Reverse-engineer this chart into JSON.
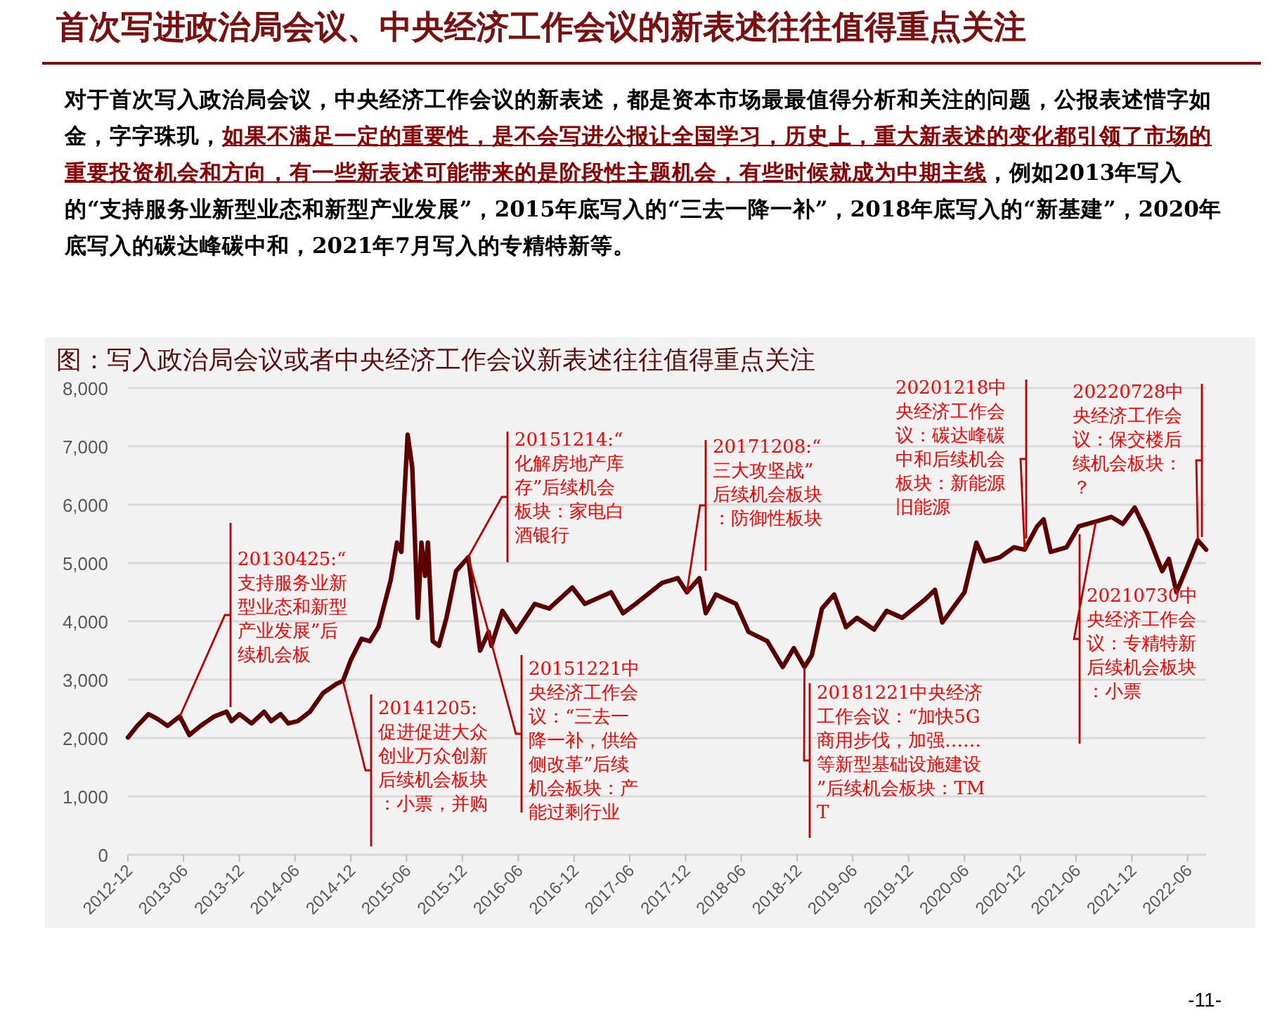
{
  "chart_data": {
    "type": "line",
    "title": "首次写进政治局会议、中央经济工作会议的新表述往往值得重点关注",
    "subtitle": "图：写入政治局会议或者中央经济工作会议新表述往往值得重点关注",
    "x": [
      "2012-12-01",
      "2013-01-01",
      "2013-02-06",
      "2013-03-07",
      "2013-04-10",
      "2013-05-20",
      "2013-06-20",
      "2013-07-27",
      "2013-09-10",
      "2013-10-20",
      "2013-11-05",
      "2013-12-01",
      "2014-01-10",
      "2014-02-20",
      "2014-03-15",
      "2014-04-15",
      "2014-05-10",
      "2014-06-10",
      "2014-07-20",
      "2014-09-01",
      "2014-10-15",
      "2014-11-05",
      "2014-12-01",
      "2015-01-05",
      "2015-02-01",
      "2015-03-01",
      "2015-04-10",
      "2015-05-01",
      "2015-05-15",
      "2015-06-05",
      "2015-06-20",
      "2015-07-08",
      "2015-07-20",
      "2015-08-01",
      "2015-08-10",
      "2015-08-26",
      "2015-09-15",
      "2015-10-10",
      "2015-11-10",
      "2015-12-20",
      "2016-01-28",
      "2016-02-25",
      "2016-03-05",
      "2016-04-10",
      "2016-05-25",
      "2016-07-25",
      "2016-09-10",
      "2016-11-25",
      "2017-01-05",
      "2017-04-01",
      "2017-05-10",
      "2017-06-20",
      "2017-09-15",
      "2017-11-05",
      "2017-12-05",
      "2018-01-15",
      "2018-02-05",
      "2018-03-10",
      "2018-05-15",
      "2018-06-25",
      "2018-08-25",
      "2018-10-15",
      "2018-11-20",
      "2018-12-25",
      "2019-01-18",
      "2019-02-20",
      "2019-04-01",
      "2019-05-10",
      "2019-06-15",
      "2019-08-10",
      "2019-09-20",
      "2019-11-10",
      "2020-01-25",
      "2020-02-25",
      "2020-03-20",
      "2020-06-01",
      "2020-07-10",
      "2020-08-05",
      "2020-09-25",
      "2020-11-10",
      "2020-12-15",
      "2021-01-25",
      "2021-02-15",
      "2021-03-10",
      "2021-05-01",
      "2021-06-10",
      "2021-08-05",
      "2021-09-25",
      "2021-11-01",
      "2021-12-10",
      "2022-01-20",
      "2022-03-10",
      "2022-04-01",
      "2022-04-26",
      "2022-05-25",
      "2022-07-05",
      "2022-08-01"
    ],
    "series": [
      {
        "color": "#5a0000",
        "values": [
          2010,
          2210,
          2410,
          2330,
          2210,
          2370,
          2050,
          2210,
          2370,
          2450,
          2290,
          2410,
          2250,
          2450,
          2290,
          2410,
          2250,
          2290,
          2450,
          2770,
          2930,
          2980,
          3340,
          3700,
          3660,
          3900,
          4700,
          5350,
          5190,
          7200,
          6630,
          4060,
          5350,
          4780,
          5350,
          3660,
          3580,
          4060,
          4860,
          5100,
          3500,
          3820,
          3580,
          4180,
          3820,
          4300,
          4220,
          4580,
          4300,
          4500,
          4140,
          4300,
          4660,
          4740,
          4500,
          4740,
          4140,
          4460,
          4300,
          3820,
          3660,
          3220,
          3540,
          3220,
          3420,
          4220,
          4460,
          3900,
          4060,
          3860,
          4180,
          4060,
          4380,
          4540,
          3980,
          4500,
          5350,
          5030,
          5100,
          5270,
          5230,
          5630,
          5750,
          5190,
          5270,
          5630,
          5710,
          5790,
          5670,
          5950,
          5510,
          4860,
          5070,
          4500,
          4860,
          5390,
          5230
        ]
      }
    ],
    "xlim": [
      "2012-12",
      "2022-08"
    ],
    "xticks": [
      "2012-12",
      "2013-06",
      "2013-12",
      "2014-06",
      "2014-12",
      "2015-06",
      "2015-12",
      "2016-06",
      "2016-12",
      "2017-06",
      "2017-12",
      "2018-06",
      "2018-12",
      "2019-06",
      "2019-12",
      "2020-06",
      "2020-12",
      "2021-06",
      "2021-12",
      "2022-06"
    ],
    "ylim": [
      0,
      8000
    ],
    "yticks": [
      0,
      {
        "value": 1000,
        "label": "1,000"
      },
      {
        "value": 2000,
        "label": "2,000"
      },
      {
        "value": 3000,
        "label": "3,000"
      },
      {
        "value": 4000,
        "label": "4,000"
      },
      {
        "value": 5000,
        "label": "5,000"
      },
      {
        "value": 6000,
        "label": "6,000"
      },
      {
        "value": 7000,
        "label": "7,000"
      },
      {
        "value": 8000,
        "label": "8,000"
      }
    ],
    "grid": "y",
    "annotations": [
      "对于首次写入政治局会议，中央经济工作会议的新表述，都是资本市场最最值得分析和关注的问题，公报表述惜字如金，字字珠玑，",
      "如果不满足一定的重要性，是不会写进公报让全国学习，历史上，重大新表述的变化都引领了市场的重要投资机会和方向，有一些新表述可能带来的是阶段性主题机会，有些时候就成为中期主线",
      "，例如2013年写入的“支持服务业新型业态和新型产业发展”，2015年底写入的“三去一降一补”，2018年底写入的“新基建”，2020年底写入的碳达峰碳中和，2021年7月写入的专精特新等。",
      {
        "text": "20130425:“支持服务业新型业态和新型产业发展”后续机会板",
        "x": "2013-05-20",
        "y": 2370
      },
      {
        "text": "20141205:促进促进大众创业万众创新后续机会板块：小票，并购",
        "x": "2014-11-05",
        "y": 2980
      },
      {
        "text": "20151214:“化解房地产库存”后续机会板块：家电白酒银行",
        "x": "2015-12-20",
        "y": 5100
      },
      {
        "text": "20151221中央经济工作会议：“三去一降一补，供给侧改革”后续机会板块：产能过剩行业",
        "x": "2015-12-20",
        "y": 5100
      },
      {
        "text": "20171208:“三大攻坚战”后续机会板块：防御性板块",
        "x": "2017-12-05",
        "y": 4500
      },
      {
        "text": "20181221中央经济工作会议：“加快5G商用步伐，加强……等新型基础设施建设”后续机会板块：TMT",
        "x": "2018-12-25",
        "y": 3220
      },
      {
        "text": "20201218中央经济工作会议：碳达峰碳中和后续机会板块：新能源旧能源",
        "x": "2020-12-15",
        "y": 5230
      },
      {
        "text": "20210730中央经济工作会议：专精特新后续机会板块：小票",
        "x": "2021-08-05",
        "y": 5710
      },
      {
        "text": "20220728中央经济工作会议：保交楼后续机会板块：？",
        "x": "2022-07-05",
        "y": 5390
      },
      "-11-"
    ]
  }
}
